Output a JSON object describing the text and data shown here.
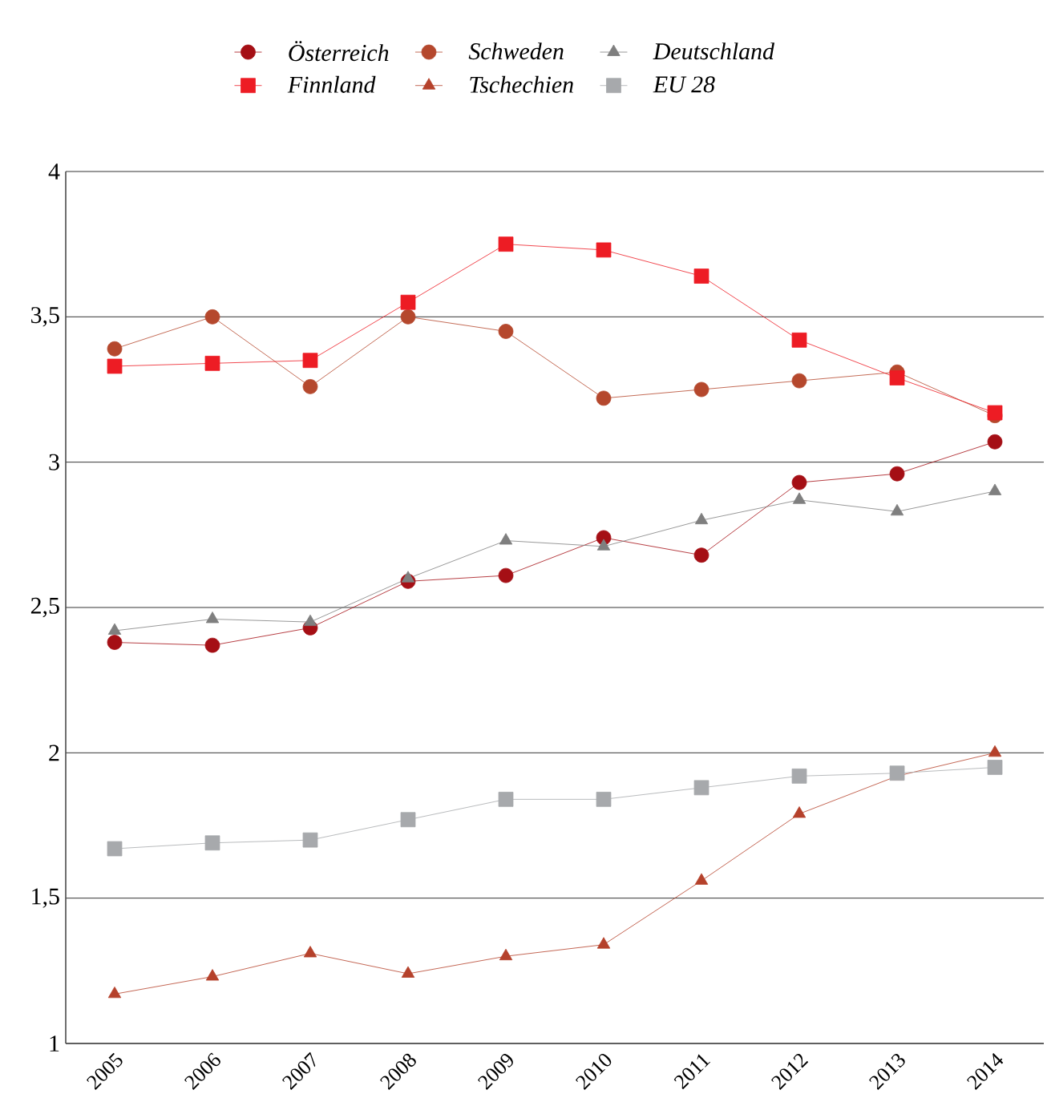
{
  "chart_data": {
    "type": "line",
    "categories": [
      "2005",
      "2006",
      "2007",
      "2008",
      "2009",
      "2010",
      "2011",
      "2012",
      "2013",
      "2014"
    ],
    "series": [
      {
        "name": "Österreich",
        "color": "#a50f15",
        "marker": "circle",
        "values": [
          2.38,
          2.37,
          2.43,
          2.59,
          2.61,
          2.74,
          2.68,
          2.93,
          2.96,
          3.07
        ]
      },
      {
        "name": "Schweden",
        "color": "#b5482d",
        "marker": "circle",
        "values": [
          3.39,
          3.5,
          3.26,
          3.5,
          3.45,
          3.22,
          3.25,
          3.28,
          3.31,
          3.16
        ]
      },
      {
        "name": "Deutschland",
        "color": "#7f7f7f",
        "marker": "triangle",
        "values": [
          2.42,
          2.46,
          2.45,
          2.6,
          2.73,
          2.71,
          2.8,
          2.87,
          2.83,
          2.9
        ]
      },
      {
        "name": "Finnland",
        "color": "#ed1c24",
        "marker": "square",
        "values": [
          3.33,
          3.34,
          3.35,
          3.55,
          3.75,
          3.73,
          3.64,
          3.42,
          3.29,
          3.17
        ]
      },
      {
        "name": "Tschechien",
        "color": "#b5412b",
        "marker": "triangle",
        "values": [
          1.17,
          1.23,
          1.31,
          1.24,
          1.3,
          1.34,
          1.56,
          1.79,
          1.92,
          2.0
        ]
      },
      {
        "name": "EU 28",
        "color": "#a7a9ac",
        "marker": "square",
        "values": [
          1.67,
          1.69,
          1.7,
          1.77,
          1.84,
          1.84,
          1.88,
          1.92,
          1.93,
          1.95
        ]
      }
    ],
    "ylim": [
      1,
      4
    ],
    "yticks": [
      1,
      {
        "value": 1.5,
        "label": "1,5"
      },
      2,
      {
        "value": 2.5,
        "label": "2,5"
      },
      3,
      {
        "value": 3.5,
        "label": "3,5"
      },
      4
    ],
    "grid": "y",
    "legend": "top",
    "line_style": "solid"
  }
}
